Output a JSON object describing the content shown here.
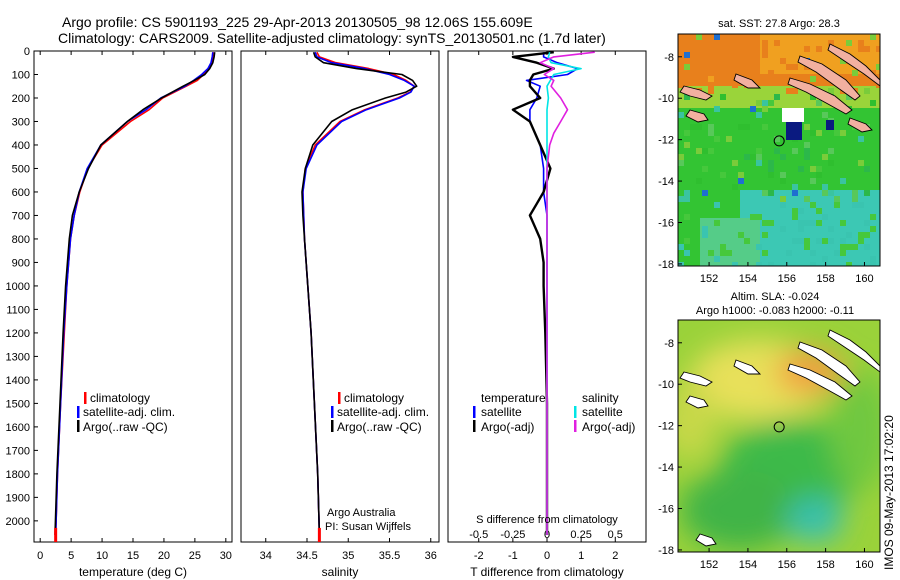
{
  "header": {
    "line1": "Argo profile: CS 5901193_225 29-Apr-2013 20130505_98 12.06S 155.609E",
    "line2": "Climatology: CARS2009. Satellite-adjusted climatology: synTS_20130501.nc (1.7d later)"
  },
  "side_label": "IMOS 09-May-2013 17:02:20",
  "colors": {
    "climatology": "#ff0000",
    "satellite": "#0000ff",
    "argo": "#000000",
    "salinity_satellite": "#00e5e5",
    "salinity_argo": "#e020e0"
  },
  "chart_data": [
    {
      "type": "line",
      "xlabel": "temperature (deg C)",
      "xlim": [
        -1,
        31
      ],
      "xticks": [
        0,
        5,
        10,
        15,
        20,
        25,
        30
      ],
      "ylim": [
        2090,
        0
      ],
      "yticks": [
        0,
        100,
        200,
        300,
        400,
        500,
        600,
        700,
        800,
        900,
        1000,
        1100,
        1200,
        1300,
        1400,
        1500,
        1600,
        1700,
        1800,
        1900,
        2000
      ],
      "legend": [
        "climatology",
        "satellite-adj. clim.",
        "Argo(..raw -QC)"
      ],
      "series": [
        {
          "name": "climatology",
          "color": "#ff0000",
          "depth": [
            5,
            25,
            50,
            75,
            100,
            125,
            150,
            200,
            250,
            300,
            400,
            500,
            600,
            700,
            800,
            1000,
            1200,
            1500,
            1800,
            2060
          ],
          "values": [
            28.0,
            27.9,
            27.7,
            27.3,
            26.4,
            25.4,
            23.6,
            19.8,
            17.6,
            14.6,
            10.0,
            7.7,
            6.4,
            5.5,
            4.9,
            4.3,
            3.9,
            3.3,
            2.8,
            2.5
          ]
        },
        {
          "name": "satellite-adj. clim.",
          "color": "#0000ff",
          "depth": [
            5,
            25,
            50,
            75,
            100,
            125,
            150,
            200,
            250,
            300,
            400,
            500,
            600,
            700,
            800,
            1000,
            1200,
            1500,
            1800,
            2060
          ],
          "values": [
            27.9,
            27.8,
            27.6,
            27.1,
            26.1,
            24.8,
            23.4,
            19.5,
            17.1,
            14.1,
            9.8,
            7.6,
            6.3,
            5.5,
            4.9,
            4.3,
            3.8,
            3.3,
            2.8,
            2.5
          ]
        },
        {
          "name": "Argo(..raw -QC)",
          "color": "#000000",
          "depth": [
            5,
            25,
            50,
            75,
            100,
            125,
            150,
            200,
            250,
            300,
            400,
            500,
            600,
            700,
            800,
            1000,
            1200,
            1500,
            1800,
            2060
          ],
          "values": [
            28.2,
            28.1,
            27.9,
            27.4,
            26.6,
            24.9,
            23.1,
            19.6,
            16.6,
            14.1,
            9.8,
            7.8,
            6.3,
            5.2,
            4.7,
            4.1,
            3.7,
            3.2,
            2.7,
            2.4
          ]
        }
      ]
    },
    {
      "type": "line",
      "xlabel": "salinity",
      "xlim": [
        33.7,
        36.1
      ],
      "xticks": [
        34,
        34.5,
        35,
        35.5,
        36
      ],
      "ylim": [
        2090,
        0
      ],
      "legend": [
        "climatology",
        "satellite-adj. clim.",
        "Argo(..raw -QC)"
      ],
      "annotation": [
        "Argo Australia",
        "PI: Susan Wijffels"
      ],
      "series": [
        {
          "name": "climatology",
          "color": "#ff0000",
          "depth": [
            5,
            25,
            50,
            75,
            100,
            125,
            150,
            175,
            200,
            250,
            300,
            400,
            500,
            600,
            700,
            800,
            1000,
            1200,
            1500,
            1800,
            2060
          ],
          "values": [
            34.62,
            34.65,
            34.85,
            35.25,
            35.55,
            35.7,
            35.8,
            35.75,
            35.6,
            35.2,
            34.9,
            34.6,
            34.48,
            34.45,
            34.46,
            34.47,
            34.51,
            34.55,
            34.59,
            34.63,
            34.65
          ]
        },
        {
          "name": "satellite-adj. clim.",
          "color": "#0000ff",
          "depth": [
            5,
            25,
            50,
            75,
            100,
            125,
            150,
            175,
            200,
            250,
            300,
            400,
            500,
            600,
            700,
            800,
            1000,
            1200,
            1500,
            1800,
            2060
          ],
          "values": [
            34.6,
            34.62,
            34.8,
            35.2,
            35.5,
            35.68,
            35.8,
            35.76,
            35.62,
            35.22,
            34.92,
            34.62,
            34.49,
            34.45,
            34.46,
            34.47,
            34.51,
            34.55,
            34.59,
            34.63,
            34.65
          ]
        },
        {
          "name": "Argo(..raw -QC)",
          "color": "#000000",
          "depth": [
            5,
            25,
            50,
            75,
            100,
            125,
            150,
            175,
            200,
            250,
            300,
            400,
            500,
            600,
            700,
            800,
            1000,
            1200,
            1500,
            1800,
            2060
          ],
          "values": [
            34.58,
            34.6,
            34.7,
            35.1,
            35.65,
            35.78,
            35.83,
            35.7,
            35.45,
            35.05,
            34.8,
            34.57,
            34.48,
            34.44,
            34.45,
            34.47,
            34.51,
            34.55,
            34.59,
            34.63,
            34.65
          ]
        }
      ]
    },
    {
      "type": "line",
      "xlabel_top": "S difference from climatology",
      "xlabel": "T difference from climatology",
      "xlim_T": [
        -2.9,
        2.9
      ],
      "xticks_T": [
        -2,
        -1,
        0,
        1,
        2
      ],
      "xlim_S": [
        -0.725,
        0.725
      ],
      "xticks_S": [
        -0.5,
        -0.25,
        0,
        0.25,
        0.5
      ],
      "xticklabels_S": [
        "-0.5",
        "-0.25",
        "0",
        "0.25",
        "0.5"
      ],
      "ylim": [
        2090,
        0
      ],
      "legend": {
        "temperature_header": "temperature",
        "salinity_header": "salinity",
        "temperature": [
          "satellite",
          "Argo(-adj)"
        ],
        "salinity": [
          "satellite",
          "Argo(-adj)"
        ]
      },
      "series": [
        {
          "name": "temperature satellite",
          "color": "#0000ff",
          "depth": [
            5,
            25,
            50,
            75,
            100,
            125,
            150,
            200,
            250,
            300,
            400,
            500,
            600,
            700,
            800,
            1000,
            1500,
            2060
          ],
          "values": [
            -0.1,
            -0.1,
            0.3,
            0.9,
            0.6,
            -0.6,
            -0.2,
            -0.3,
            -0.5,
            -0.5,
            -0.2,
            -0.1,
            -0.1,
            0.0,
            0.0,
            0.0,
            0.0,
            0.0
          ]
        },
        {
          "name": "temperature Argo(-adj)",
          "color": "#000000",
          "depth": [
            5,
            25,
            50,
            75,
            100,
            125,
            150,
            200,
            250,
            300,
            400,
            500,
            600,
            650,
            700,
            750,
            800,
            900,
            1000,
            1200,
            1500,
            1800,
            2060
          ],
          "values": [
            0.2,
            -1.0,
            -0.3,
            0.2,
            -0.4,
            -0.5,
            -0.5,
            -0.2,
            -1.0,
            -0.5,
            -0.2,
            0.1,
            -0.1,
            -0.3,
            -0.5,
            -0.35,
            -0.2,
            -0.1,
            -0.1,
            -0.05,
            0.0,
            0.0,
            0.0
          ]
        },
        {
          "name": "salinity satellite",
          "color": "#00e5e5",
          "depth": [
            5,
            25,
            50,
            75,
            100,
            150,
            200,
            250,
            300,
            400,
            500,
            700,
            1000,
            1500,
            2060
          ],
          "values": [
            0.02,
            0.01,
            0.03,
            0.25,
            0.05,
            0.0,
            0.01,
            0.0,
            0.0,
            0.0,
            0.0,
            0.0,
            0.0,
            0.0,
            0.0
          ]
        },
        {
          "name": "salinity Argo(-adj)",
          "color": "#e020e0",
          "depth": [
            5,
            25,
            50,
            75,
            100,
            125,
            150,
            200,
            250,
            300,
            350,
            400,
            500,
            700,
            1000,
            1500,
            2060
          ],
          "values": [
            0.35,
            0.05,
            -0.05,
            0.05,
            -0.02,
            0.05,
            0.03,
            0.1,
            0.15,
            0.1,
            0.05,
            0.02,
            0.0,
            0.0,
            0.0,
            0.0,
            0.0
          ]
        }
      ]
    },
    {
      "type": "heatmap",
      "title": "sat. SST: 27.8 Argo: 28.3",
      "xticks": [
        152,
        154,
        156,
        158,
        160
      ],
      "yticks": [
        -8,
        -10,
        -12,
        -14,
        -16,
        -18
      ],
      "xlim": [
        150.4,
        160.8
      ],
      "ylim": [
        -18.1,
        -6.9
      ],
      "argo_position": {
        "lon": 155.609,
        "lat": -12.06
      }
    },
    {
      "type": "heatmap",
      "title": [
        "Altim. SLA: -0.024",
        "Argo h1000: -0.083 h2000: -0.11"
      ],
      "xticks": [
        152,
        154,
        156,
        158,
        160
      ],
      "yticks": [
        -8,
        -10,
        -12,
        -14,
        -16,
        -18
      ],
      "xlim": [
        150.4,
        160.8
      ],
      "ylim": [
        -18.1,
        -6.9
      ],
      "argo_position": {
        "lon": 155.609,
        "lat": -12.06
      }
    }
  ]
}
